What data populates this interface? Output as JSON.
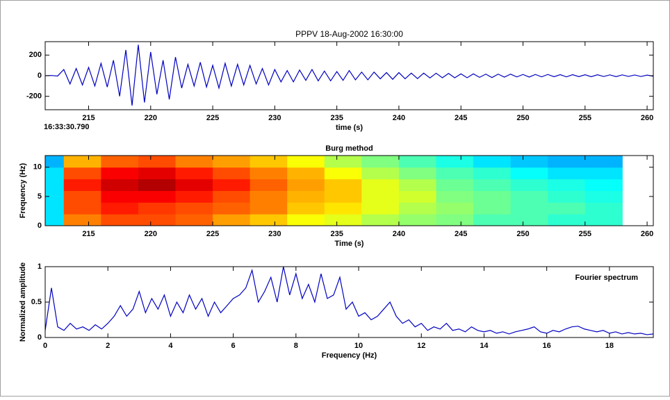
{
  "chart_data": [
    {
      "type": "line",
      "title": "PPPV 18-Aug-2002 16:30:00",
      "xlabel": "time (s)",
      "annotation": "16:33:30.790",
      "color": "#0000c0",
      "xlim": [
        211.5,
        260.5
      ],
      "ylim": [
        -330,
        330
      ],
      "xticks": [
        215,
        220,
        225,
        230,
        235,
        240,
        245,
        250,
        255,
        260
      ],
      "yticks": [
        -200,
        0,
        200
      ],
      "x": [
        211.5,
        212,
        212.5,
        213,
        213.5,
        214,
        214.5,
        215,
        215.5,
        216,
        216.5,
        217,
        217.5,
        218,
        218.5,
        219,
        219.5,
        220,
        220.5,
        221,
        221.5,
        222,
        222.5,
        223,
        223.5,
        224,
        224.5,
        225,
        225.5,
        226,
        226.5,
        227,
        227.5,
        228,
        228.5,
        229,
        229.5,
        230,
        230.5,
        231,
        231.5,
        232,
        232.5,
        233,
        233.5,
        234,
        234.5,
        235,
        235.5,
        236,
        236.5,
        237,
        237.5,
        238,
        238.5,
        239,
        239.5,
        240,
        240.5,
        241,
        241.5,
        242,
        242.5,
        243,
        243.5,
        244,
        244.5,
        245,
        245.5,
        246,
        246.5,
        247,
        247.5,
        248,
        248.5,
        249,
        249.5,
        250,
        250.5,
        251,
        251.5,
        252,
        252.5,
        253,
        253.5,
        254,
        254.5,
        255,
        255.5,
        256,
        256.5,
        257,
        257.5,
        258,
        258.5,
        259,
        259.5,
        260,
        260.5
      ],
      "values": [
        0,
        2,
        -3,
        60,
        -80,
        70,
        -90,
        80,
        -100,
        120,
        -110,
        150,
        -200,
        250,
        -290,
        300,
        -260,
        230,
        -180,
        150,
        -230,
        180,
        -120,
        110,
        -100,
        130,
        -110,
        100,
        -120,
        120,
        -100,
        110,
        -90,
        100,
        -80,
        70,
        -90,
        60,
        -60,
        50,
        -60,
        55,
        -45,
        60,
        -50,
        45,
        -50,
        40,
        -45,
        50,
        -40,
        35,
        -40,
        35,
        -30,
        30,
        -35,
        30,
        -30,
        25,
        -28,
        25,
        -22,
        24,
        -20,
        22,
        -20,
        18,
        -20,
        18,
        -16,
        15,
        -18,
        15,
        -14,
        15,
        -12,
        12,
        -13,
        12,
        -11,
        12,
        -10,
        10,
        -11,
        10,
        -9,
        9,
        -10,
        9,
        -8,
        8,
        -9,
        8,
        -7,
        7,
        -8,
        6,
        -5
      ]
    },
    {
      "type": "heatmap",
      "title": "Burg method",
      "xlabel": "Time (s)",
      "ylabel": "Frequency (Hz)",
      "colormap": "jet",
      "xlim": [
        211.5,
        260.5
      ],
      "ylim": [
        0,
        12
      ],
      "xticks": [
        215,
        220,
        225,
        230,
        235,
        240,
        245,
        250,
        255,
        260
      ],
      "yticks": [
        0,
        5,
        10
      ],
      "x_edges": [
        211.5,
        213,
        216,
        219,
        222,
        225,
        228,
        231,
        234,
        237,
        240,
        243,
        246,
        249,
        252,
        255,
        258
      ],
      "y_edges": [
        0,
        2,
        4,
        6,
        8,
        10,
        12
      ],
      "z": [
        [
          0.35,
          0.75,
          0.8,
          0.8,
          0.78,
          0.72,
          0.68,
          0.62,
          0.6,
          0.55,
          0.52,
          0.5,
          0.45,
          0.45,
          0.42,
          0.42
        ],
        [
          0.35,
          0.8,
          0.85,
          0.82,
          0.8,
          0.78,
          0.75,
          0.68,
          0.65,
          0.6,
          0.55,
          0.52,
          0.48,
          0.45,
          0.45,
          0.42
        ],
        [
          0.35,
          0.8,
          0.88,
          0.88,
          0.85,
          0.8,
          0.75,
          0.7,
          0.68,
          0.6,
          0.58,
          0.5,
          0.48,
          0.45,
          0.42,
          0.4
        ],
        [
          0.35,
          0.85,
          0.92,
          0.95,
          0.9,
          0.85,
          0.78,
          0.72,
          0.68,
          0.6,
          0.55,
          0.48,
          0.45,
          0.42,
          0.4,
          0.38
        ],
        [
          0.35,
          0.8,
          0.88,
          0.9,
          0.85,
          0.8,
          0.75,
          0.7,
          0.62,
          0.55,
          0.5,
          0.45,
          0.42,
          0.38,
          0.35,
          0.35
        ],
        [
          0.3,
          0.7,
          0.78,
          0.8,
          0.75,
          0.72,
          0.68,
          0.62,
          0.55,
          0.5,
          0.45,
          0.4,
          0.35,
          0.32,
          0.3,
          0.3
        ]
      ]
    },
    {
      "type": "line",
      "xlabel": "Frequency (Hz)",
      "ylabel": "Normalized amplitude",
      "annotation": "Fourier spectrum",
      "color": "#0000c0",
      "xlim": [
        0,
        19.4
      ],
      "ylim": [
        0,
        1
      ],
      "xticks": [
        0,
        2,
        4,
        6,
        8,
        10,
        12,
        14,
        16,
        18
      ],
      "yticks": [
        0,
        0.5,
        1
      ],
      "x": [
        0,
        0.2,
        0.4,
        0.6,
        0.8,
        1,
        1.2,
        1.4,
        1.6,
        1.8,
        2,
        2.2,
        2.4,
        2.6,
        2.8,
        3,
        3.2,
        3.4,
        3.6,
        3.8,
        4,
        4.2,
        4.4,
        4.6,
        4.8,
        5,
        5.2,
        5.4,
        5.6,
        5.8,
        6,
        6.2,
        6.4,
        6.6,
        6.8,
        7,
        7.2,
        7.4,
        7.6,
        7.8,
        8,
        8.2,
        8.4,
        8.6,
        8.8,
        9,
        9.2,
        9.4,
        9.6,
        9.8,
        10,
        10.2,
        10.4,
        10.6,
        10.8,
        11,
        11.2,
        11.4,
        11.6,
        11.8,
        12,
        12.2,
        12.4,
        12.6,
        12.8,
        13,
        13.2,
        13.4,
        13.6,
        13.8,
        14,
        14.2,
        14.4,
        14.6,
        14.8,
        15,
        15.2,
        15.4,
        15.6,
        15.8,
        16,
        16.2,
        16.4,
        16.6,
        16.8,
        17,
        17.2,
        17.4,
        17.6,
        17.8,
        18,
        18.2,
        18.4,
        18.6,
        18.8,
        19,
        19.2,
        19.4
      ],
      "values": [
        0.1,
        0.7,
        0.15,
        0.1,
        0.2,
        0.12,
        0.15,
        0.1,
        0.18,
        0.12,
        0.2,
        0.3,
        0.45,
        0.3,
        0.4,
        0.65,
        0.35,
        0.55,
        0.4,
        0.6,
        0.3,
        0.5,
        0.35,
        0.6,
        0.4,
        0.55,
        0.3,
        0.5,
        0.35,
        0.45,
        0.55,
        0.6,
        0.7,
        0.95,
        0.5,
        0.65,
        0.85,
        0.5,
        1,
        0.6,
        0.9,
        0.55,
        0.75,
        0.5,
        0.9,
        0.55,
        0.6,
        0.85,
        0.4,
        0.5,
        0.3,
        0.35,
        0.25,
        0.3,
        0.4,
        0.5,
        0.3,
        0.2,
        0.25,
        0.15,
        0.2,
        0.1,
        0.15,
        0.12,
        0.2,
        0.1,
        0.12,
        0.08,
        0.15,
        0.1,
        0.08,
        0.1,
        0.06,
        0.08,
        0.05,
        0.08,
        0.1,
        0.12,
        0.15,
        0.08,
        0.06,
        0.1,
        0.08,
        0.12,
        0.15,
        0.16,
        0.12,
        0.1,
        0.08,
        0.1,
        0.06,
        0.08,
        0.05,
        0.07,
        0.05,
        0.06,
        0.04,
        0.05
      ]
    }
  ]
}
